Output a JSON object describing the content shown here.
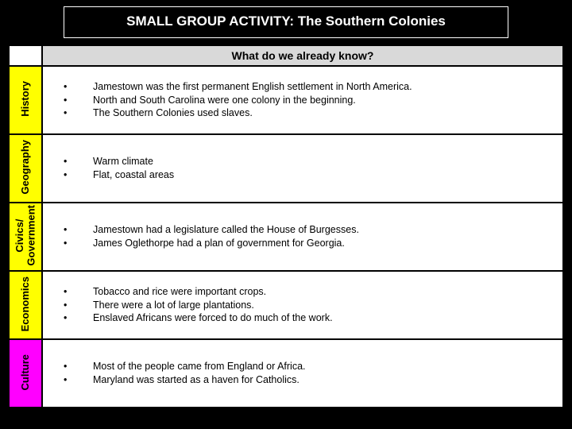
{
  "title": "SMALL GROUP ACTIVITY:  The  Southern Colonies",
  "header": "What do we already know?",
  "rows": [
    {
      "label": "History",
      "color": "yellow",
      "items": [
        "Jamestown was the first permanent English settlement in North America.",
        "North and South Carolina were one colony in the beginning.",
        "The Southern Colonies used slaves."
      ]
    },
    {
      "label": "Geography",
      "color": "yellow",
      "items": [
        "Warm climate",
        "Flat, coastal areas"
      ]
    },
    {
      "label": "Civics/\nGovernment",
      "color": "yellow",
      "items": [
        "Jamestown had a legislature called the House of Burgesses.",
        "James Oglethorpe had a plan of government for Georgia."
      ]
    },
    {
      "label": "Economics",
      "color": "yellow",
      "items": [
        "Tobacco and rice were important crops.",
        "There were a lot of large plantations.",
        "Enslaved Africans were forced to do much of the work."
      ]
    },
    {
      "label": "Culture",
      "color": "magenta",
      "items": [
        "Most of the people came from England or Africa.",
        "Maryland was started as a haven for Catholics."
      ]
    }
  ]
}
